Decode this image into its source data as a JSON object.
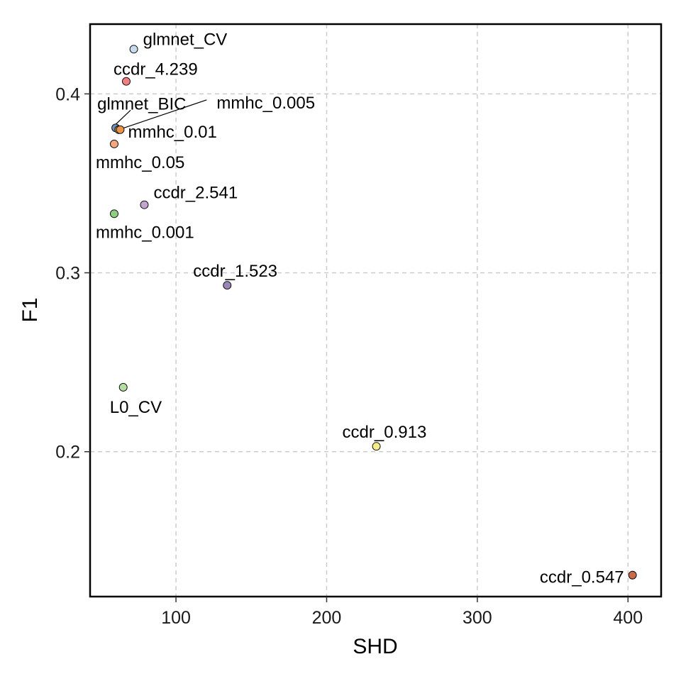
{
  "chart_data": {
    "type": "scatter",
    "xlabel": "SHD",
    "ylabel": "F1",
    "xlim": [
      43,
      422
    ],
    "ylim": [
      0.119,
      0.439
    ],
    "x_ticks": [
      100,
      200,
      300,
      400
    ],
    "y_ticks": [
      0.2,
      0.3,
      0.4
    ],
    "x_tick_labels": [
      "100",
      "200",
      "300",
      "400"
    ],
    "y_tick_labels": [
      "0.2",
      "0.3",
      "0.4"
    ],
    "grid": true,
    "legend": "none",
    "points": [
      {
        "label": "glmnet_CV",
        "x": 72,
        "y": 0.425,
        "color": "#c6dbef"
      },
      {
        "label": "ccdr_4.239",
        "x": 67,
        "y": 0.407,
        "color": "#f08080"
      },
      {
        "label": "glmnet_BIC",
        "x": 60,
        "y": 0.381,
        "color": "#6a8fbf"
      },
      {
        "label": "mmhc_0.005",
        "x": 62,
        "y": 0.38,
        "color": "#d9a84e"
      },
      {
        "label": "mmhc_0.01",
        "x": 63,
        "y": 0.38,
        "color": "#e8954a"
      },
      {
        "label": "mmhc_0.05",
        "x": 59,
        "y": 0.372,
        "color": "#f4a582"
      },
      {
        "label": "ccdr_2.541",
        "x": 79,
        "y": 0.338,
        "color": "#c2a5cf"
      },
      {
        "label": "mmhc_0.001",
        "x": 59,
        "y": 0.333,
        "color": "#8fce7e"
      },
      {
        "label": "ccdr_1.523",
        "x": 134,
        "y": 0.293,
        "color": "#9a85b8"
      },
      {
        "label": "L0_CV",
        "x": 65,
        "y": 0.236,
        "color": "#b2dfa0"
      },
      {
        "label": "ccdr_0.913",
        "x": 233,
        "y": 0.203,
        "color": "#f5ec8a"
      },
      {
        "label": "ccdr_0.547",
        "x": 403,
        "y": 0.131,
        "color": "#c96a4a"
      }
    ]
  }
}
